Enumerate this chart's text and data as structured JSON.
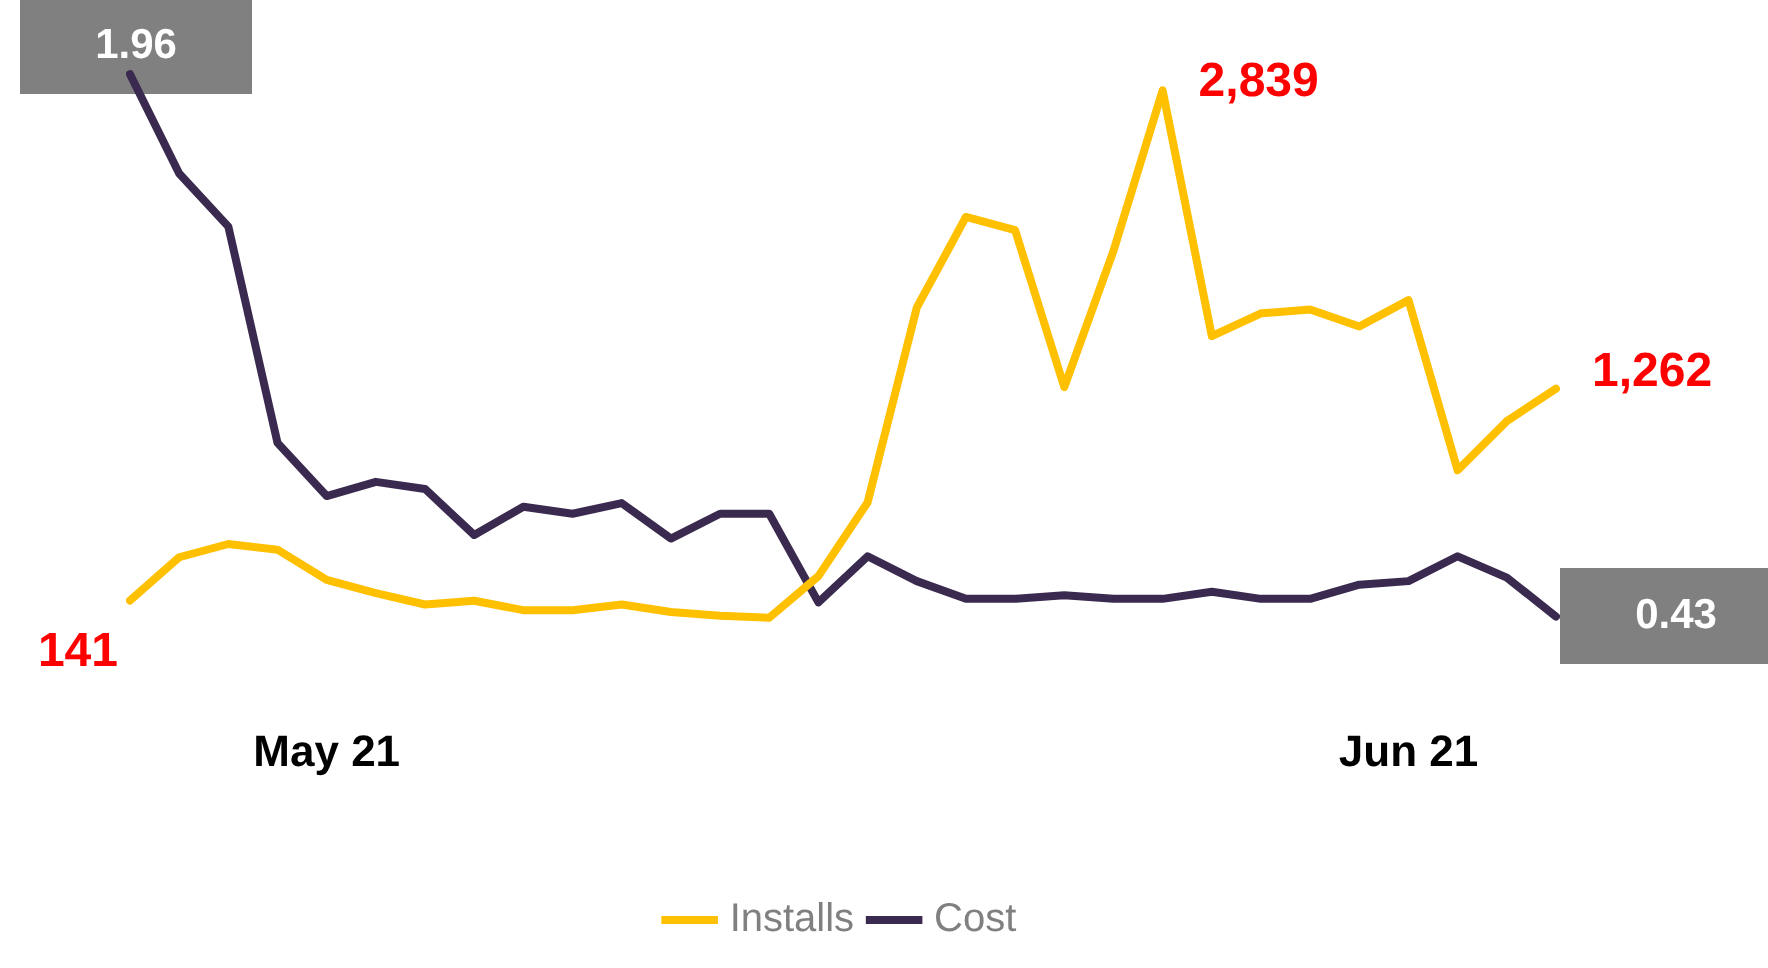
{
  "chart_data": {
    "type": "line",
    "categories": [
      null,
      null,
      null,
      null,
      "May 21",
      null,
      null,
      null,
      null,
      null,
      null,
      null,
      null,
      null,
      null,
      null,
      null,
      null,
      null,
      null,
      null,
      null,
      null,
      null,
      null,
      null,
      "Jun 21",
      null,
      null,
      null
    ],
    "series": [
      {
        "name": "Installs",
        "color": "#ffc000",
        "values": [
          141,
          370,
          440,
          410,
          250,
          180,
          120,
          140,
          90,
          90,
          120,
          80,
          60,
          50,
          270,
          660,
          1690,
          2170,
          2100,
          1270,
          1990,
          2839,
          1540,
          1660,
          1680,
          1590,
          1730,
          830,
          1090,
          1262
        ],
        "value_labels": [
          "141",
          null,
          null,
          null,
          null,
          null,
          null,
          null,
          null,
          null,
          null,
          null,
          null,
          null,
          null,
          null,
          null,
          null,
          null,
          null,
          null,
          "2,839",
          null,
          null,
          null,
          null,
          null,
          null,
          null,
          "1,262"
        ]
      },
      {
        "name": "Cost",
        "color": "#3b2a4f",
        "axis": "y2",
        "values": [
          1.96,
          1.68,
          1.53,
          0.92,
          0.77,
          0.81,
          0.79,
          0.66,
          0.74,
          0.72,
          0.75,
          0.65,
          0.72,
          0.72,
          0.47,
          0.6,
          0.53,
          0.48,
          0.48,
          0.49,
          0.48,
          0.48,
          0.5,
          0.48,
          0.48,
          0.52,
          0.53,
          0.6,
          0.54,
          0.43
        ],
        "value_labels": [
          "1.96",
          null,
          null,
          null,
          null,
          null,
          null,
          null,
          null,
          null,
          null,
          null,
          null,
          null,
          null,
          null,
          null,
          null,
          null,
          null,
          null,
          null,
          null,
          null,
          null,
          null,
          null,
          null,
          null,
          "0.43"
        ]
      }
    ],
    "tick_labels": "x",
    "legend": "bottom",
    "grid": false,
    "marker": "none",
    "line_style": "solid"
  }
}
